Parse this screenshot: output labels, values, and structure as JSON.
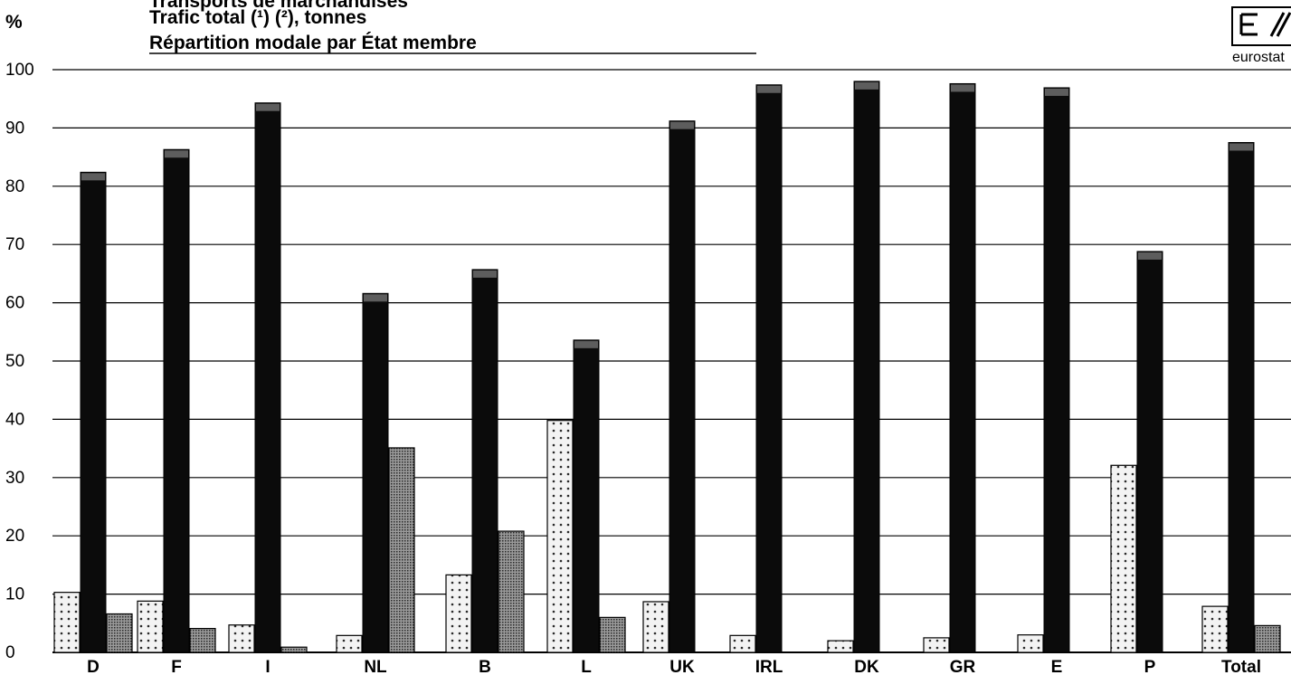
{
  "header": {
    "title_line1": "Transports de marchandises",
    "title_line2": "Trafic total (¹) (²), tonnes",
    "title_line3": "Répartition modale par État membre",
    "unit": "%"
  },
  "logo": {
    "text": "eurostat",
    "emblem": "eurostat-emblem-icon"
  },
  "colors": {
    "dark_bar": "#0b0b0b",
    "dark_bar_mid": "#3a3a3a",
    "stripe_grey": "#7a7a7a",
    "stripe_light": "#cfcfcf",
    "dotted_fill": "#f3f3f3",
    "dotted_dot": "#2a2a2a",
    "dense_fill": "#9a9a9a",
    "grid": "#000000"
  },
  "chart_data": {
    "type": "bar",
    "grouped": true,
    "categories": [
      "D",
      "F",
      "I",
      "NL",
      "B",
      "L",
      "UK",
      "IRL",
      "DK",
      "GR",
      "E",
      "P",
      "Total"
    ],
    "series": [
      {
        "pattern": "dotted",
        "values": [
          10.3,
          8.8,
          4.7,
          2.9,
          13.3,
          39.8,
          8.7,
          2.9,
          2.0,
          2.5,
          3.0,
          32.1,
          7.9
        ]
      },
      {
        "pattern": "dark",
        "values": [
          82.4,
          86.3,
          94.3,
          61.6,
          65.7,
          53.6,
          91.2,
          97.4,
          98.0,
          97.6,
          96.9,
          68.8,
          87.5
        ]
      },
      {
        "pattern": "dense",
        "values": [
          6.6,
          4.1,
          0.9,
          35.1,
          20.8,
          6.0,
          null,
          null,
          null,
          null,
          null,
          null,
          4.6
        ]
      }
    ],
    "ylim": [
      0,
      100
    ],
    "yticks": [
      "0",
      "10",
      "20",
      "30",
      "40",
      "50",
      "60",
      "70",
      "80",
      "90",
      "100"
    ],
    "grid": true
  }
}
